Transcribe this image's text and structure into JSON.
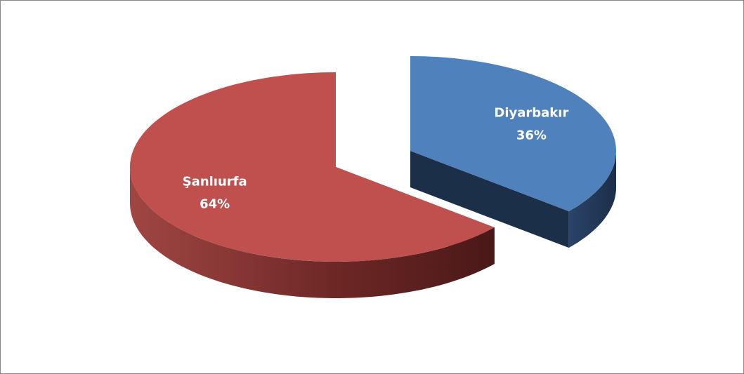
{
  "chart_data": {
    "type": "pie",
    "categories": [
      "Diyarbakır",
      "Şanlıurfa"
    ],
    "values": [
      36,
      64
    ],
    "value_labels": [
      "36%",
      "64%"
    ],
    "colors": [
      "#4f81bd",
      "#c0504d"
    ]
  }
}
